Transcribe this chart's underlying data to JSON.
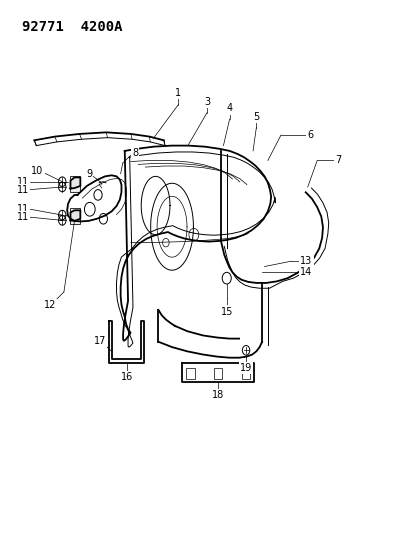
{
  "title": "92771  4200A",
  "bg": "#ffffff",
  "lc": "#000000",
  "fig_w": 4.14,
  "fig_h": 5.33,
  "dpi": 100
}
